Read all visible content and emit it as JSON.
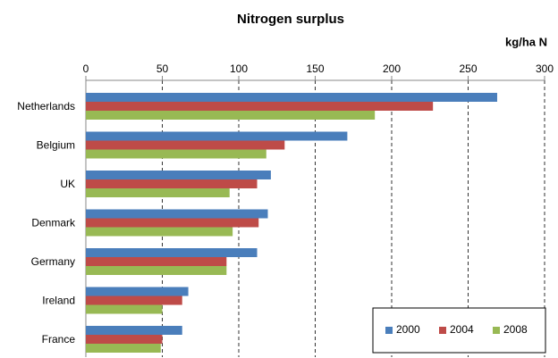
{
  "chart_data": {
    "type": "hbar",
    "title": "Nitrogen surplus",
    "unit_label": "kg/ha N",
    "categories": [
      "Netherlands",
      "Belgium",
      "UK",
      "Denmark",
      "Germany",
      "Ireland",
      "France"
    ],
    "series": [
      {
        "name": "2000",
        "color": "#4a7ebb",
        "values": [
          269,
          171,
          121,
          119,
          112,
          67,
          63
        ]
      },
      {
        "name": "2004",
        "color": "#be4b48",
        "values": [
          227,
          130,
          112,
          113,
          92,
          63,
          50
        ]
      },
      {
        "name": "2008",
        "color": "#98b954",
        "values": [
          189,
          118,
          94,
          96,
          92,
          50,
          49
        ]
      }
    ],
    "xlim": [
      0,
      300
    ],
    "xticks": [
      0,
      50,
      100,
      150,
      200,
      250,
      300
    ],
    "grid": true,
    "legend": "lower right"
  }
}
